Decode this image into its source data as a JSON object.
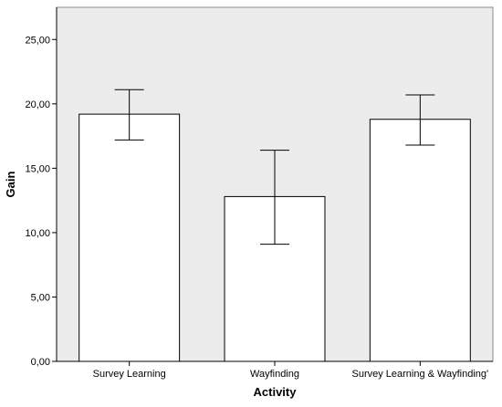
{
  "chart_data": {
    "type": "bar",
    "title": "",
    "xlabel": "Activity",
    "ylabel": "Gain",
    "categories": [
      "Survey Learning",
      "Wayfinding",
      "Survey Learning & Wayfinding'"
    ],
    "values": [
      19.2,
      12.8,
      18.8
    ],
    "error_bars": [
      {
        "low": 17.2,
        "high": 21.1
      },
      {
        "low": 9.1,
        "high": 16.4
      },
      {
        "low": 16.8,
        "high": 20.7
      }
    ],
    "ylim": [
      0,
      27.5
    ],
    "yticks": [
      0,
      5,
      10,
      15,
      20,
      25
    ],
    "ytick_labels": [
      "0,00",
      "5,00",
      "10,00",
      "15,00",
      "20,00",
      "25,00"
    ],
    "grid": false,
    "legend": "none",
    "colors": {
      "plot_background": "#ececec",
      "bar_fill": "#ffffff",
      "bar_stroke": "#000000",
      "axis": "#000000"
    }
  }
}
